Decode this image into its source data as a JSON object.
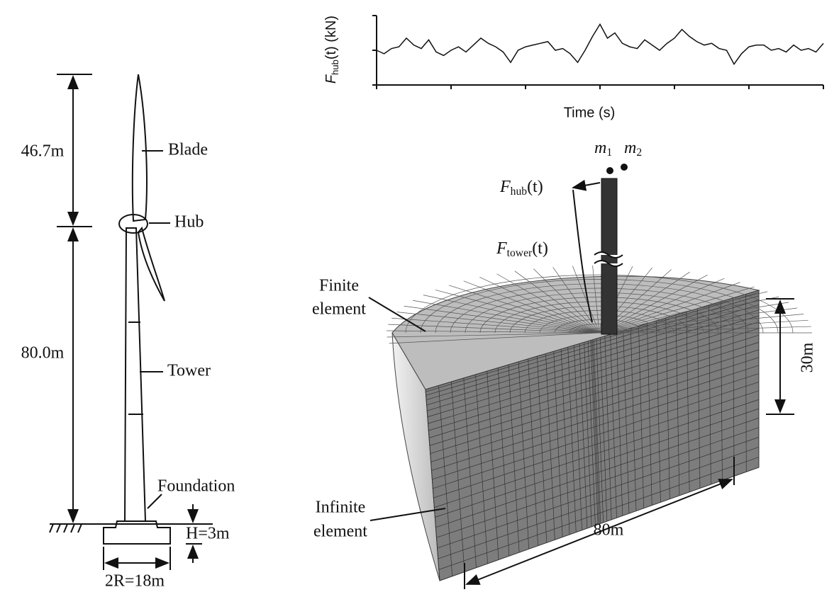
{
  "chart_data": {
    "type": "line",
    "ylabel": {
      "base": "F",
      "sub": "hub",
      "tail": "(t) (kN)"
    },
    "xlabel": "Time (s)",
    "x": [
      0,
      10,
      20,
      30,
      40,
      50,
      60,
      70,
      80,
      90,
      100,
      110,
      120,
      130,
      140,
      150,
      160,
      170,
      180,
      190,
      200,
      210,
      220,
      230,
      240,
      250,
      260,
      270,
      280,
      290,
      300,
      310,
      320,
      330,
      340,
      350,
      360,
      370,
      380,
      390,
      400,
      410,
      420,
      430,
      440,
      450,
      460,
      470,
      480,
      490,
      500,
      510,
      520,
      530,
      540,
      550,
      560,
      570,
      580,
      590,
      600
    ],
    "values": [
      200,
      180,
      210,
      220,
      270,
      230,
      210,
      260,
      190,
      170,
      200,
      220,
      190,
      230,
      270,
      240,
      220,
      190,
      130,
      200,
      220,
      230,
      240,
      250,
      200,
      210,
      180,
      130,
      200,
      280,
      350,
      270,
      300,
      240,
      220,
      210,
      260,
      230,
      200,
      240,
      270,
      320,
      280,
      250,
      230,
      240,
      210,
      200,
      120,
      180,
      220,
      230,
      230,
      200,
      210,
      190,
      230,
      200,
      210,
      190,
      240
    ],
    "color": "#111111",
    "xlim": [
      0,
      600
    ],
    "xticks": [
      0,
      100,
      200,
      300,
      400,
      500,
      600
    ],
    "ylim": [
      0,
      400
    ],
    "yticks": [
      0,
      200,
      400
    ]
  },
  "diagram": {
    "blade_length": "46.7m",
    "tower_height": "80.0m",
    "blade": "Blade",
    "hub": "Hub",
    "tower": "Tower",
    "foundation": "Foundation",
    "embed_depth": "H=3m",
    "diameter": "2R=18m",
    "finite_element": [
      "Finite",
      "element"
    ],
    "infinite_element": [
      "Infinite",
      "element"
    ],
    "depth": "30m",
    "width": "80m",
    "m1": {
      "base": "m",
      "sub": "1"
    },
    "m2": {
      "base": "m",
      "sub": "2"
    },
    "f_hub": {
      "base": "F",
      "sub": "hub",
      "tail": "(t)"
    },
    "f_tower": {
      "base": "F",
      "sub": "tower",
      "tail": "(t)"
    }
  }
}
